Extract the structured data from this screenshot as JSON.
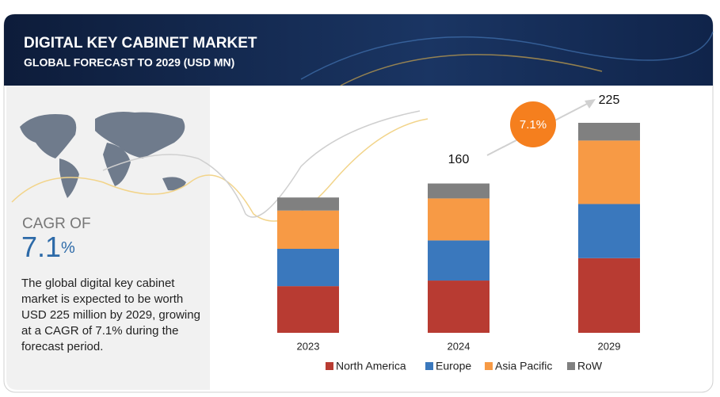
{
  "header": {
    "title": "DIGITAL KEY CABINET MARKET",
    "subtitle": "GLOBAL FORECAST TO 2029 (USD MN)"
  },
  "side_panel": {
    "cagr_label": "CAGR OF",
    "cagr_value": "7.1",
    "cagr_unit": "%",
    "text": "The global digital key cabinet market is expected to be worth USD 225 million by 2029, growing at a CAGR of 7.1% during the forecast period."
  },
  "chart_data": {
    "type": "stacked_bar",
    "categories": [
      "2023",
      "2024",
      "2029"
    ],
    "series": [
      {
        "name": "North America",
        "color": "#b83b32",
        "values": [
          50,
          56,
          80
        ]
      },
      {
        "name": "Europe",
        "color": "#3a78bd",
        "values": [
          40,
          43,
          58
        ]
      },
      {
        "name": "Asia Pacific",
        "color": "#f79a45",
        "values": [
          41,
          45,
          68
        ]
      },
      {
        "name": "RoW",
        "color": "#808080",
        "values": [
          14,
          16,
          19
        ]
      }
    ],
    "totals": [
      null,
      160,
      225
    ],
    "annotation": "7.1%",
    "legend": "bottom"
  }
}
